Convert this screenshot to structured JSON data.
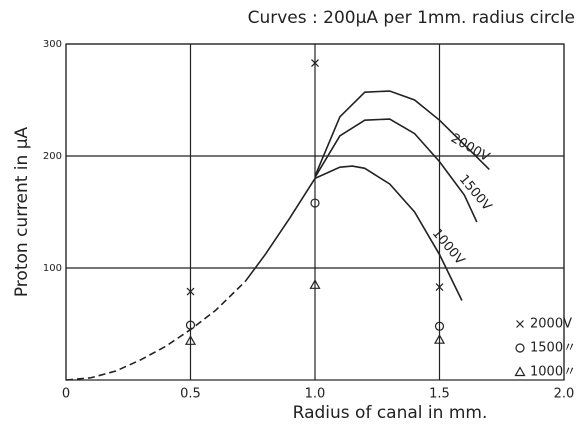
{
  "chart_data": {
    "type": "line",
    "title": "Curves : 200μA per 1mm. radius circle",
    "xlabel": "Radius of canal in mm.",
    "ylabel": "Proton current in μA",
    "xlim": [
      0,
      2
    ],
    "ylim": [
      0,
      300
    ],
    "xticks": [
      0,
      0.5,
      {
        "value": 1,
        "label": "1.0"
      },
      1.5,
      {
        "value": 2,
        "label": "2.0"
      }
    ],
    "yticks": [
      100,
      200,
      300
    ],
    "grid": true,
    "legend": "lower right",
    "annotations": [
      "2000V",
      "1500V",
      "1000V"
    ],
    "series": [
      {
        "style": "dashed",
        "color": "#222",
        "x": [
          0,
          0.1,
          0.2,
          0.3,
          0.4,
          0.5,
          0.6,
          0.72
        ],
        "values": [
          0,
          2,
          8,
          18,
          30,
          45,
          62,
          88
        ]
      },
      {
        "style": "solid",
        "color": "#222",
        "x": [
          0.72,
          0.8,
          0.9,
          1.0
        ],
        "values": [
          88,
          112,
          145,
          180
        ]
      },
      {
        "style": "solid",
        "color": "#222",
        "x": [
          1.0,
          1.1,
          1.2,
          1.3,
          1.4,
          1.5,
          1.6,
          1.7
        ],
        "values": [
          182,
          235,
          257,
          258,
          250,
          232,
          210,
          188
        ]
      },
      {
        "style": "solid",
        "color": "#222",
        "x": [
          1.0,
          1.1,
          1.2,
          1.3,
          1.4,
          1.5,
          1.6,
          1.65
        ],
        "values": [
          181,
          218,
          232,
          233,
          220,
          195,
          165,
          141
        ]
      },
      {
        "style": "solid",
        "color": "#222",
        "x": [
          1.0,
          1.1,
          1.15,
          1.2,
          1.3,
          1.4,
          1.5,
          1.59
        ],
        "values": [
          180,
          190,
          191,
          189,
          175,
          150,
          112,
          71
        ]
      },
      {
        "name": "2000V",
        "marker": "x",
        "color": "#222",
        "x": [
          0.5,
          1.0,
          1.5
        ],
        "values": [
          79,
          283,
          83
        ]
      },
      {
        "name": "1500〃",
        "marker": "o",
        "color": "#222",
        "x": [
          0.5,
          1.0,
          1.5
        ],
        "values": [
          49,
          158,
          48
        ]
      },
      {
        "name": "1000〃",
        "marker": "^",
        "color": "#222",
        "x": [
          0.5,
          1.0,
          1.5
        ],
        "values": [
          35,
          85,
          36
        ]
      }
    ]
  }
}
